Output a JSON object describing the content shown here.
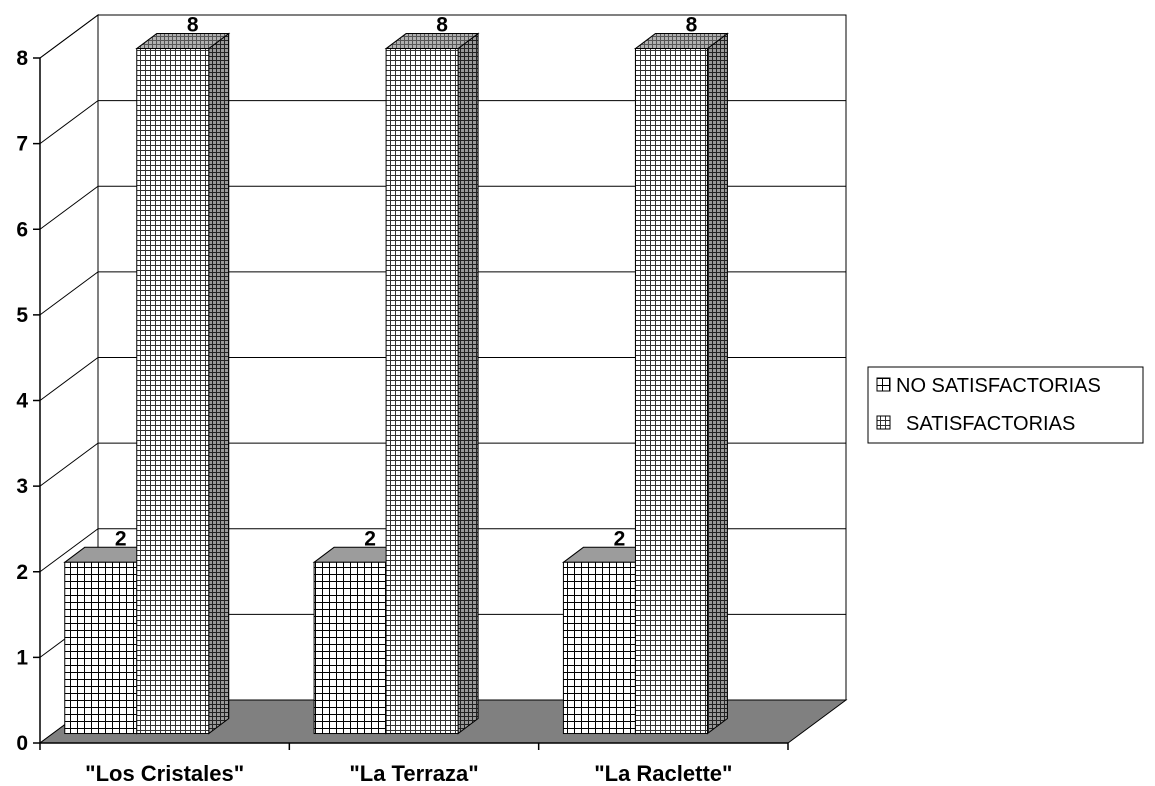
{
  "chart_data": {
    "type": "bar",
    "three_d": true,
    "categories": [
      "\"Los Cristales\"",
      "\"La Terraza\"",
      "\"La Raclette\""
    ],
    "series": [
      {
        "name": "NO SATISFACTORIAS",
        "values": [
          2,
          2,
          2
        ],
        "fill": "#ffffff",
        "pattern": "open-grid"
      },
      {
        "name": "SATISFACTORIAS",
        "values": [
          8,
          8,
          8
        ],
        "fill": "#cccccc",
        "pattern": "dense-grid"
      }
    ],
    "yticks": [
      0,
      1,
      2,
      3,
      4,
      5,
      6,
      7,
      8
    ],
    "ylim": [
      0,
      8
    ],
    "grid": true,
    "data_labels": true,
    "legend_position": "right",
    "title": "",
    "xlabel": "",
    "ylabel": "",
    "colors": {
      "floor": "#808080",
      "frame": "#000000",
      "grid": "#000000"
    }
  }
}
